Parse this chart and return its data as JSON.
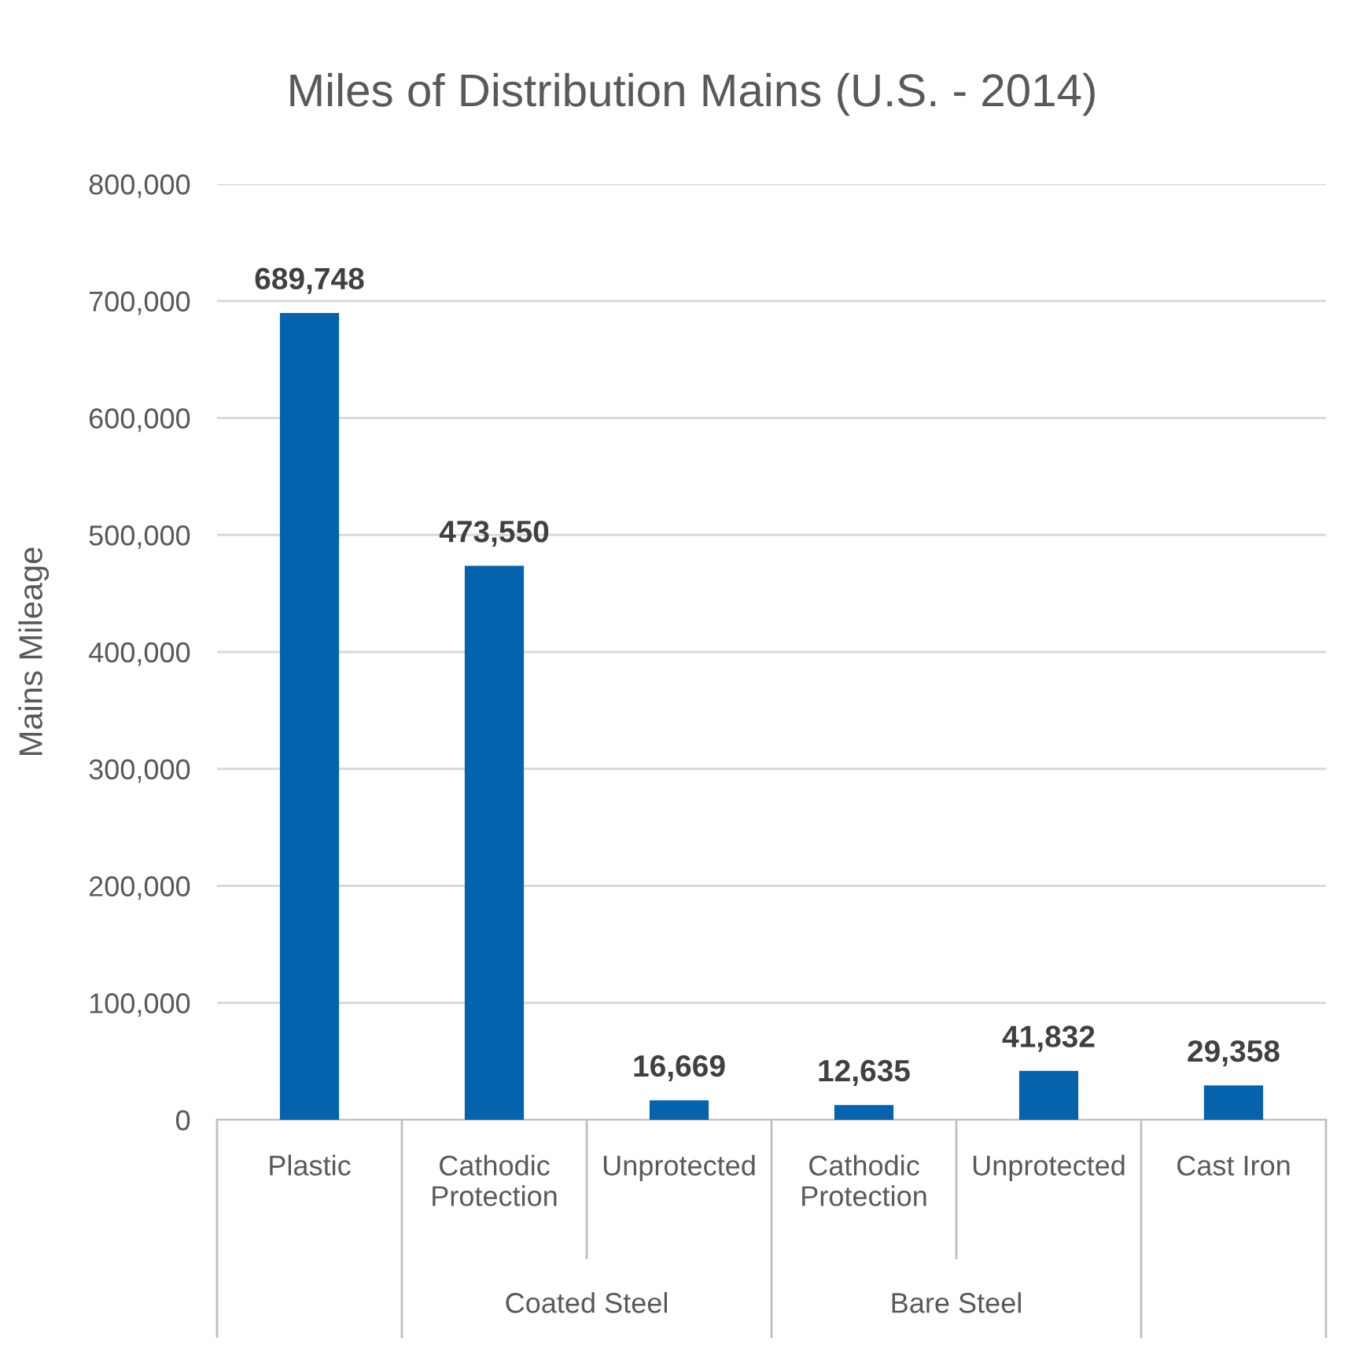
{
  "chart_data": {
    "type": "bar",
    "title": "Miles of Distribution Mains (U.S. - 2014)",
    "ylabel": "Mains Mileage",
    "categories": [
      "Plastic",
      "Cathodic\nProtection",
      "Unprotected",
      "Cathodic\nProtection",
      "Unprotected",
      "Cast Iron"
    ],
    "values": [
      689748,
      473550,
      16669,
      12635,
      41832,
      29358
    ],
    "color": "#0563ad",
    "ylim": [
      0,
      800000
    ],
    "yticks": [
      {
        "value": 0,
        "label": "0"
      },
      {
        "value": 100000,
        "label": "100,000"
      },
      {
        "value": 200000,
        "label": "200,000"
      },
      {
        "value": 300000,
        "label": "300,000"
      },
      {
        "value": 400000,
        "label": "400,000"
      },
      {
        "value": 500000,
        "label": "500,000"
      },
      {
        "value": 600000,
        "label": "600,000"
      },
      {
        "value": 700000,
        "label": "700,000"
      },
      {
        "value": 800000,
        "label": "800,000"
      }
    ],
    "annotations": [
      "Coated Steel",
      "Bare Steel"
    ],
    "value_labels": [
      "689,748",
      "473,550",
      "16,669",
      "12,635",
      "41,832",
      "29,358"
    ],
    "grid": "y"
  }
}
